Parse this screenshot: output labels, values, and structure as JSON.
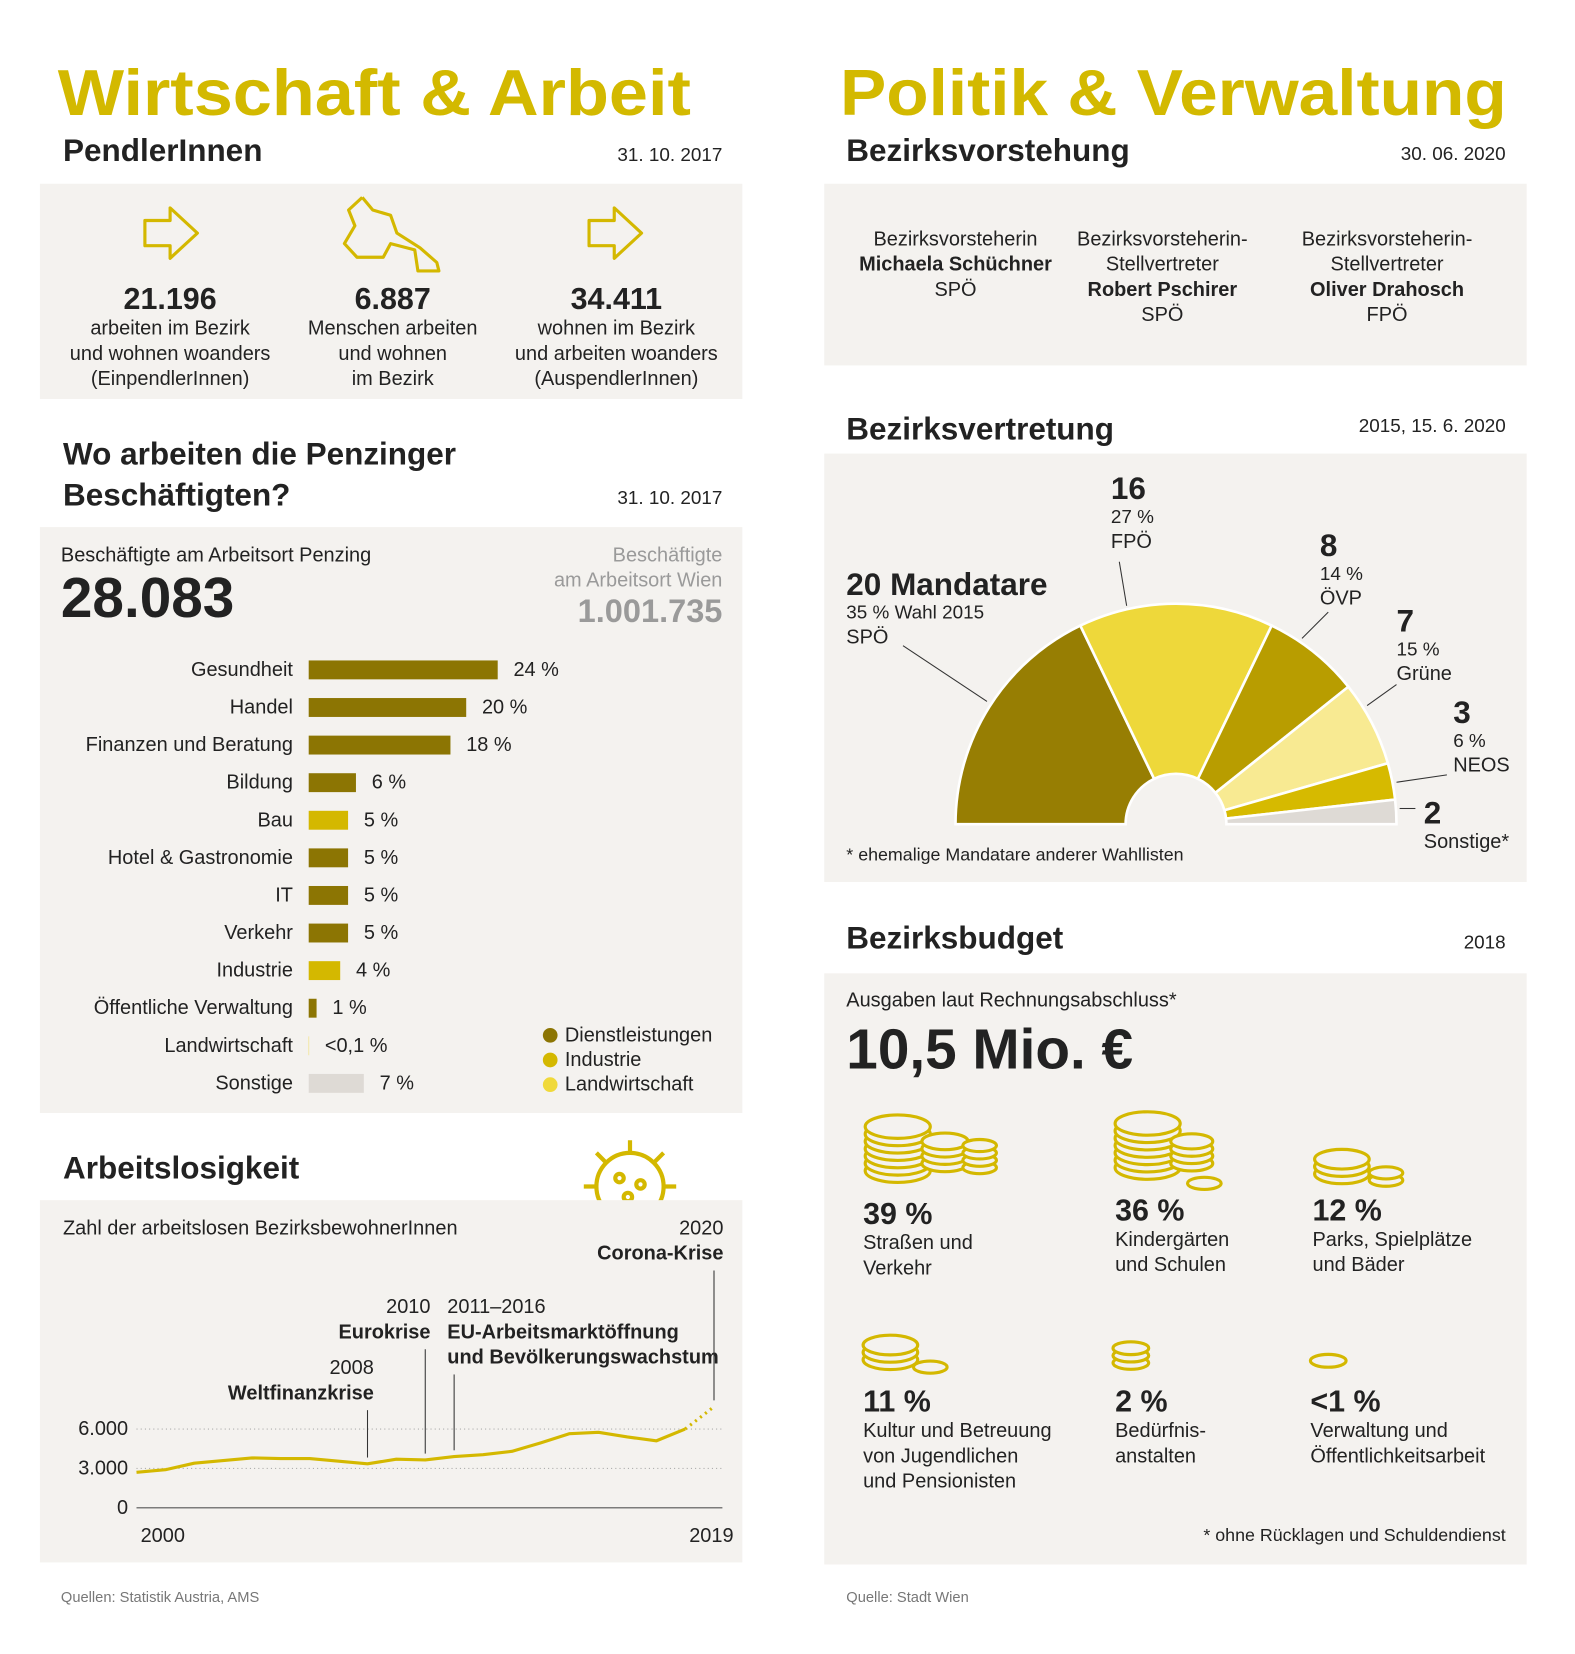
{
  "left": {
    "title": "Wirtschaft & Arbeit"
  },
  "right": {
    "title": "Politik & Verwaltung"
  },
  "pendler": {
    "title": "PendlerInnen",
    "date": "31. 10. 2017",
    "items": [
      {
        "number": "21.196",
        "lines": [
          "arbeiten im Bezirk",
          "und wohnen woanders",
          "(EinpendlerInnen)"
        ]
      },
      {
        "number": "6.887",
        "lines": [
          "Menschen arbeiten",
          "und wohnen",
          "im Bezirk"
        ]
      },
      {
        "number": "34.411",
        "lines": [
          "wohnen im Bezirk",
          "und arbeiten woanders",
          "(AuspendlerInnen)"
        ]
      }
    ]
  },
  "beschaeftigte": {
    "title": [
      "Wo arbeiten die Penzinger",
      "Beschäftigten?"
    ],
    "date": "31. 10. 2017",
    "label": "Beschäftigte am Arbeitsort Penzing",
    "number": "28.083",
    "compare_label": [
      "Beschäftigte",
      "am Arbeitsort Wien"
    ],
    "compare_number": "1.001.735"
  },
  "sources_left": "Quellen: Statistik Austria, AMS",
  "bezirksvorstehung": {
    "title": "Bezirksvorstehung",
    "date": "30. 06. 2020",
    "people": [
      {
        "role": [
          "Bezirksvorsteherin"
        ],
        "name": "Michaela Schüchner",
        "party": "SPÖ"
      },
      {
        "role": [
          "Bezirksvorsteherin-",
          "Stellvertreter"
        ],
        "name": "Robert Pschirer",
        "party": "SPÖ"
      },
      {
        "role": [
          "Bezirksvorsteherin-",
          "Stellvertreter"
        ],
        "name": "Oliver Drahosch",
        "party": "FPÖ"
      }
    ]
  },
  "bezirksvertretung": {
    "title": "Bezirksvertretung",
    "date": "2015, 15. 6. 2020"
  },
  "bezirksbudget": {
    "title": "Bezirksbudget",
    "date": "2018",
    "label": "Ausgaben laut Rechnungsabschluss*",
    "number": "10,5 Mio. €",
    "items": [
      {
        "percent": "39 %",
        "lines": [
          "Straßen und",
          "Verkehr"
        ]
      },
      {
        "percent": "36 %",
        "lines": [
          "Kindergärten",
          "und Schulen"
        ]
      },
      {
        "percent": "12 %",
        "lines": [
          "Parks, Spielplätze",
          "und Bäder"
        ]
      },
      {
        "percent": "11 %",
        "lines": [
          "Kultur und Betreuung",
          "von Jugendlichen",
          "und Pensionisten"
        ]
      },
      {
        "percent": "2 %",
        "lines": [
          "Bedürfnis-",
          "anstalten"
        ]
      },
      {
        "percent": "<1 %",
        "lines": [
          "Verwaltung und",
          "Öffentlichkeitsarbeit"
        ]
      }
    ],
    "footnote": "* ohne Rücklagen und Schuldendienst"
  },
  "source_right": "Quelle: Stadt Wien",
  "chart_data": [
    {
      "type": "bar",
      "orientation": "horizontal",
      "categories": [
        "Gesundheit",
        "Handel",
        "Finanzen und Beratung",
        "Bildung",
        "Bau",
        "Hotel & Gastronomie",
        "IT",
        "Verkehr",
        "Industrie",
        "Öffentliche Verwaltung",
        "Landwirtschaft",
        "Sonstige"
      ],
      "values": [
        24,
        20,
        18,
        6,
        5,
        5,
        5,
        5,
        4,
        1,
        0.05,
        7
      ],
      "value_labels": [
        "24 %",
        "20 %",
        "18 %",
        "6 %",
        "5 %",
        "5 %",
        "5 %",
        "5 %",
        "4 %",
        "1 %",
        "<0,1 %",
        "7 %"
      ],
      "colors": [
        "#8c7503",
        "#8c7503",
        "#8c7503",
        "#8c7503",
        "#d4b800",
        "#8c7503",
        "#8c7503",
        "#8c7503",
        "#d4b800",
        "#8c7503",
        "#f0d93a",
        "#dedad5"
      ],
      "legend": [
        {
          "name": "Dienstleistungen",
          "color": "#8c7503"
        },
        {
          "name": "Industrie",
          "color": "#d4b800"
        },
        {
          "name": "Landwirtschaft",
          "color": "#f0d93a"
        }
      ]
    },
    {
      "type": "line",
      "title": "Arbeitslosigkeit",
      "subtitle": "Zahl der arbeitslosen BezirksbewohnerInnen",
      "x": [
        2000,
        2001,
        2002,
        2003,
        2004,
        2005,
        2006,
        2007,
        2008,
        2009,
        2010,
        2011,
        2012,
        2013,
        2014,
        2015,
        2016,
        2017,
        2018,
        2019,
        2020
      ],
      "values": [
        2700,
        2900,
        3400,
        3600,
        3800,
        3750,
        3750,
        3550,
        3350,
        3700,
        3650,
        3900,
        4050,
        4300,
        4950,
        5650,
        5750,
        5400,
        5100,
        6000,
        7700
      ],
      "color": "#d4b800",
      "dotted_from": 2019,
      "xlim": [
        2000,
        2020
      ],
      "ylim": [
        0,
        8000
      ],
      "xticks": [
        2000,
        2019
      ],
      "yticks": [
        0,
        {
          "value": 3000,
          "label": "3.000"
        },
        {
          "value": 6000,
          "label": "6.000"
        }
      ],
      "grid": true,
      "annotations": [
        {
          "x": 2008,
          "year": "2008",
          "text": [
            "Weltfinanzkrise"
          ]
        },
        {
          "x": 2010,
          "year": "2010",
          "text": [
            "Eurokrise"
          ]
        },
        {
          "x": 2011,
          "year": "2011–2016",
          "text": [
            "EU-Arbeitsmarktöffnung",
            "und Bevölkerungswachstum"
          ]
        },
        {
          "x": 2020,
          "year": "2020",
          "text": [
            "Corona-Krise"
          ]
        }
      ]
    },
    {
      "type": "pie",
      "style": "semicircle",
      "categories": [
        "SPÖ",
        "FPÖ",
        "ÖVP",
        "Grüne",
        "NEOS",
        "Sonstige*"
      ],
      "values": [
        20,
        16,
        8,
        7,
        3,
        2
      ],
      "value_labels": [
        "20 Mandatare",
        "16",
        "8",
        "7",
        "3",
        "2"
      ],
      "percent_labels": [
        "35 % Wahl 2015",
        "27 %",
        "14 %",
        "15 %",
        "6 %",
        null
      ],
      "colors": [
        "#977e03",
        "#eed83a",
        "#b89d00",
        "#f8ea92",
        "#d6ba00",
        "#dedad5"
      ],
      "footnote": "* ehemalige Mandatare anderer Wahllisten"
    }
  ]
}
